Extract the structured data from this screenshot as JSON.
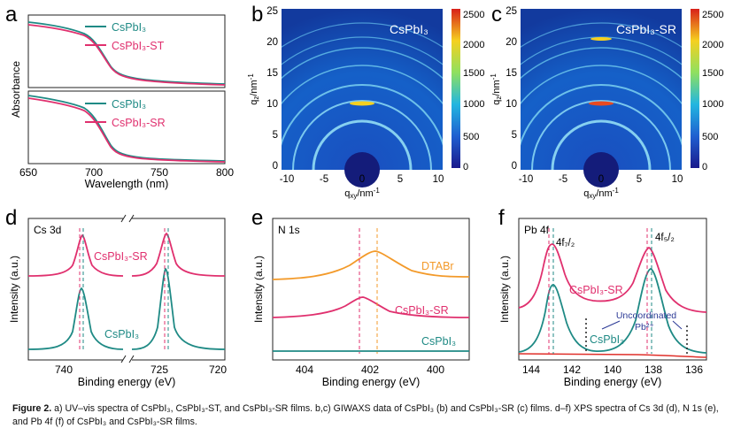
{
  "figure": {
    "caption_label": "Figure 2.",
    "caption_text": " a) UV–vis spectra of CsPbI₃, CsPbI₃-ST, and CsPbI₃-SR films. b,c) GIWAXS data of CsPbI₃ (b) and CsPbI₃-SR (c) films. d–f) XPS spectra of Cs 3d (d), N 1s (e), and Pb 4f (f) of CsPbI₃ and CsPbI₃-SR films."
  },
  "colors": {
    "teal": "#1f8a85",
    "magenta": "#e0306e",
    "orange": "#f39a2a",
    "red": "#e0302a"
  },
  "panels": {
    "a": {
      "letter": "a",
      "xlabel": "Wavelength (nm)",
      "ylabel": "Absorbance",
      "xticks": [
        "650",
        "700",
        "750",
        "800"
      ],
      "top_legend": [
        "CsPbI₃",
        "CsPbI₃-ST"
      ],
      "bottom_legend": [
        "CsPbI₃",
        "CsPbI₃-SR"
      ]
    },
    "b": {
      "letter": "b",
      "label": "CsPbI₃",
      "ylabel": "q_z/nm⁻¹",
      "xlabel": "q_xy/nm⁻¹",
      "yticks": [
        "25",
        "20",
        "15",
        "10",
        "5",
        "0"
      ],
      "xticks": [
        "-10",
        "-5",
        "0",
        "5",
        "10"
      ],
      "colorbar": [
        "2500",
        "2000",
        "1500",
        "1000",
        "500",
        "0"
      ]
    },
    "c": {
      "letter": "c",
      "label": "CsPbI₃-SR",
      "ylabel": "q_z/nm⁻¹",
      "xlabel": "q_xy/nm⁻¹",
      "yticks": [
        "25",
        "20",
        "15",
        "10",
        "5",
        "0"
      ],
      "xticks": [
        "-10",
        "-5",
        "0",
        "5",
        "10"
      ],
      "colorbar": [
        "2500",
        "2000",
        "1500",
        "1000",
        "500",
        "0"
      ]
    },
    "d": {
      "letter": "d",
      "title": "Cs 3d",
      "xlabel": "Binding energy (eV)",
      "ylabel": "Intensity (a.u.)",
      "xticks": [
        "740",
        "725",
        "720"
      ],
      "series_labels": [
        "CsPbI₃-SR",
        "CsPbI₃"
      ]
    },
    "e": {
      "letter": "e",
      "title": "N 1s",
      "xlabel": "Binding energy (eV)",
      "ylabel": "Intensity (a.u.)",
      "xticks": [
        "404",
        "402",
        "400"
      ],
      "series_labels": [
        "DTABr",
        "CsPbI₃-SR",
        "CsPbI₃"
      ]
    },
    "f": {
      "letter": "f",
      "title": "Pb 4f",
      "xlabel": "Binding energy (eV)",
      "ylabel": "Intensity (a.u.)",
      "xticks": [
        "144",
        "142",
        "140",
        "138",
        "136"
      ],
      "peak_labels": [
        "4f₇/₂",
        "4f₅/₂"
      ],
      "series_labels": [
        "CsPbI₃-SR",
        "CsPbI₃"
      ],
      "annotation_line1": "Uncoordinated",
      "annotation_line2": "Pb²⁺"
    }
  }
}
